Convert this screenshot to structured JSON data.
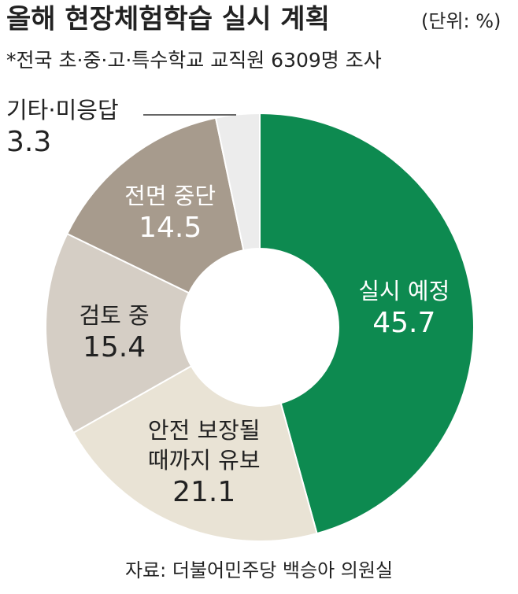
{
  "chart_data": {
    "type": "donut",
    "title": "올해 현장체험학습 실시 계획",
    "unit": "(단위: %)",
    "subtitle": "*전국 초·중·고·특수학교 교직원 6309명 조사",
    "source": "자료: 더불어민주당 백승아 의원실",
    "categories": [
      "실시 예정",
      "안전 보장될\n때까지 유보",
      "검토 중",
      "전면 중단",
      "기타·미응답"
    ],
    "values": [
      45.7,
      21.1,
      15.4,
      14.5,
      3.3
    ],
    "colors": [
      "#0d8a50",
      "#e9e3d5",
      "#d5cec5",
      "#a79b8d",
      "#ececec"
    ]
  }
}
